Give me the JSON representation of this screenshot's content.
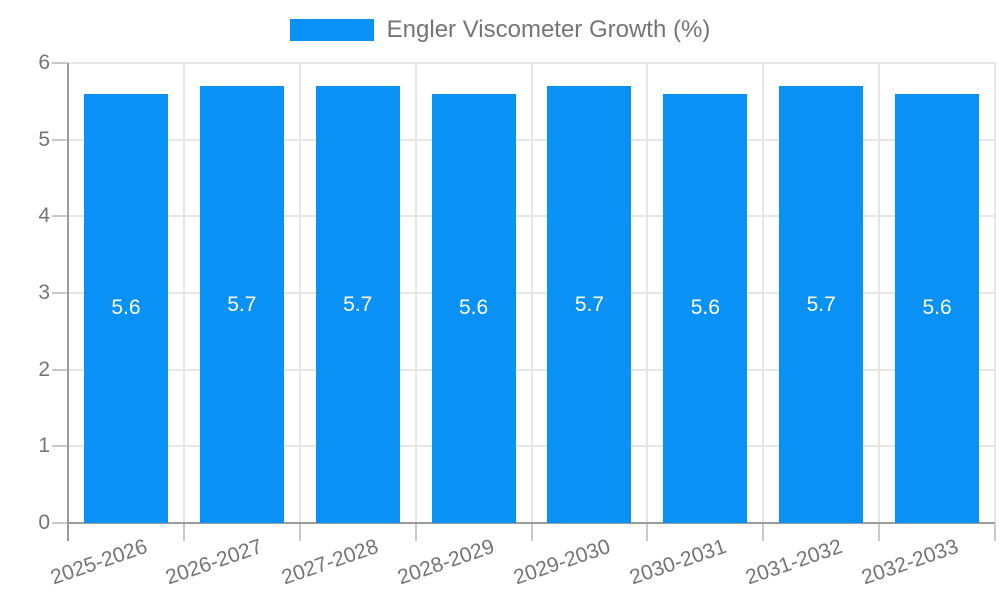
{
  "chart_data": {
    "type": "bar",
    "title": "",
    "legend": {
      "label": "Engler Viscometer Growth (%)",
      "position": "top"
    },
    "categories": [
      "2025-2026",
      "2026-2027",
      "2027-2028",
      "2028-2029",
      "2029-2030",
      "2030-2031",
      "2031-2032",
      "2032-2033"
    ],
    "series": [
      {
        "name": "Engler Viscometer Growth (%)",
        "values": [
          5.6,
          5.7,
          5.7,
          5.6,
          5.7,
          5.6,
          5.7,
          5.6
        ]
      }
    ],
    "xlabel": "",
    "ylabel": "",
    "ylim": [
      0,
      6
    ],
    "yticks": [
      0,
      1,
      2,
      3,
      4,
      5,
      6
    ],
    "grid": true,
    "value_labels_shown": true,
    "x_label_rotation_deg": -19,
    "colors": {
      "bar": "#0991f6",
      "value_label": "#ffffff",
      "axis_text": "#757575",
      "gridline": "#e6e6e6",
      "tick": "#c9c9c9",
      "axis_line": "#9b9b9b",
      "background": "#ffffff"
    }
  }
}
